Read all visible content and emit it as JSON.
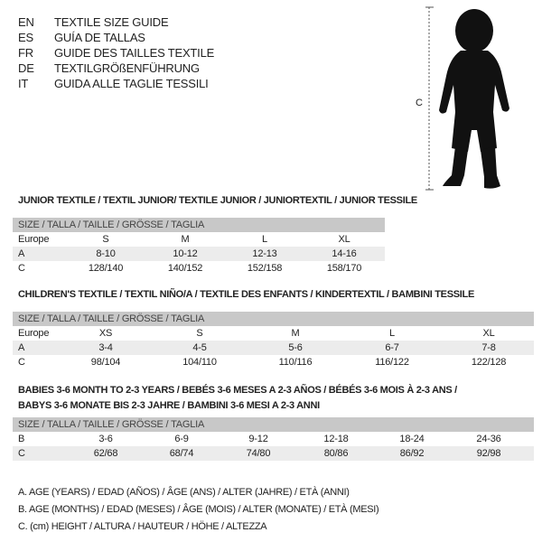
{
  "languages": [
    {
      "code": "EN",
      "text": "TEXTILE SIZE GUIDE"
    },
    {
      "code": "ES",
      "text": "GUÍA DE TALLAS"
    },
    {
      "code": "FR",
      "text": "GUIDE DES TAILLES TEXTILE"
    },
    {
      "code": "DE",
      "text": "TEXTILGRÖßENFÜHRUNG"
    },
    {
      "code": "IT",
      "text": "GUIDA ALLE TAGLIE TESSILI"
    }
  ],
  "figure": {
    "label": "C"
  },
  "size_header": "SIZE / TALLA / TAILLE / GRÖSSE / TAGLIA",
  "junior": {
    "title": "JUNIOR TEXTILE / TEXTIL JUNIOR/ TEXTILE JUNIOR / JUNIORTEXTIL / JUNIOR TESSILE",
    "rows": [
      {
        "label": "Europe",
        "values": [
          "S",
          "M",
          "L",
          "XL"
        ]
      },
      {
        "label": "A",
        "values": [
          "8-10",
          "10-12",
          "12-13",
          "14-16"
        ]
      },
      {
        "label": "C",
        "values": [
          "128/140",
          "140/152",
          "152/158",
          "158/170"
        ]
      }
    ]
  },
  "children": {
    "title": "CHILDREN'S TEXTILE / TEXTIL NIÑO/A / TEXTILE DES ENFANTS / KINDERTEXTIL / BAMBINI TESSILE",
    "rows": [
      {
        "label": "Europe",
        "values": [
          "XS",
          "S",
          "M",
          "L",
          "XL"
        ]
      },
      {
        "label": "A",
        "values": [
          "3-4",
          "4-5",
          "5-6",
          "6-7",
          "7-8"
        ]
      },
      {
        "label": "C",
        "values": [
          "98/104",
          "104/110",
          "110/116",
          "116/122",
          "122/128"
        ]
      }
    ]
  },
  "babies": {
    "title_line1": "BABIES 3-6 MONTH TO 2-3 YEARS / BEBÉS 3-6 MESES A 2-3 AÑOS / BÉBÉS 3-6 MOIS À 2-3 ANS /",
    "title_line2": "BABYS 3-6 MONATE BIS 2-3 JAHRE / BAMBINI 3-6 MESI A 2-3 ANNI",
    "rows": [
      {
        "label": "B",
        "values": [
          "3-6",
          "6-9",
          "9-12",
          "12-18",
          "18-24",
          "24-36"
        ]
      },
      {
        "label": "C",
        "values": [
          "62/68",
          "68/74",
          "74/80",
          "80/86",
          "86/92",
          "92/98"
        ]
      }
    ]
  },
  "legend": [
    "A. AGE (YEARS) / EDAD (AÑOS) / ÂGE (ANS) / ALTER (JAHRE) / ETÀ (ANNI)",
    "B. AGE (MONTHS) / EDAD (MESES) / ÂGE (MOIS) / ALTER (MONATE) / ETÀ (MESI)",
    "C. (cm) HEIGHT / ALTURA / HAUTEUR / HÖHE / ALTEZZA"
  ]
}
